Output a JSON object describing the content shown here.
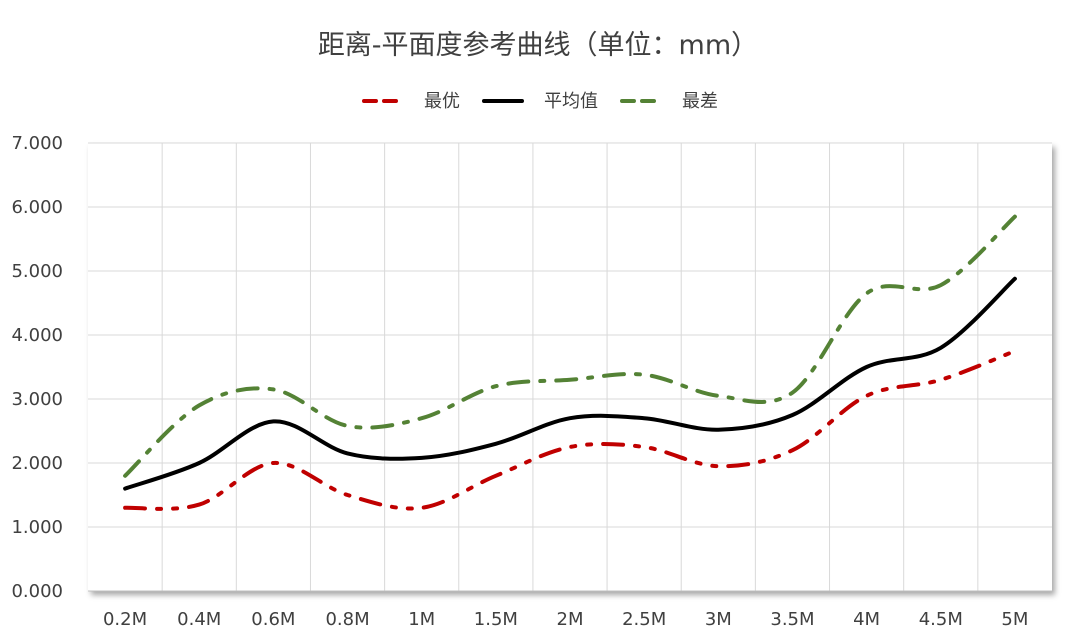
{
  "chart_data": {
    "type": "line",
    "title": "距离-平面度参考曲线（单位：mm）",
    "xlabel": "",
    "ylabel": "",
    "categories": [
      "0.2M",
      "0.4M",
      "0.6M",
      "0.8M",
      "1M",
      "1.5M",
      "2M",
      "2.5M",
      "3M",
      "3.5M",
      "4M",
      "4.5M",
      "5M"
    ],
    "ylim": [
      0,
      7
    ],
    "yticks": [
      "0.000",
      "1.000",
      "2.000",
      "3.000",
      "4.000",
      "5.000",
      "6.000",
      "7.000"
    ],
    "grid": true,
    "legend_position": "top",
    "smooth": true,
    "series": [
      {
        "name": "最优",
        "color": "#c00000",
        "dash": "dash-dot-dot",
        "values": [
          1.3,
          1.35,
          2.0,
          1.5,
          1.3,
          1.8,
          2.25,
          2.25,
          1.95,
          2.2,
          3.05,
          3.3,
          3.75
        ]
      },
      {
        "name": "平均值",
        "color": "#000000",
        "dash": "solid",
        "values": [
          1.6,
          2.0,
          2.65,
          2.15,
          2.08,
          2.3,
          2.7,
          2.7,
          2.52,
          2.75,
          3.5,
          3.8,
          4.88
        ]
      },
      {
        "name": "最差",
        "color": "#548235",
        "dash": "dash-dot",
        "values": [
          1.8,
          2.9,
          3.15,
          2.58,
          2.7,
          3.2,
          3.3,
          3.38,
          3.05,
          3.1,
          4.65,
          4.78,
          5.85
        ]
      }
    ]
  }
}
